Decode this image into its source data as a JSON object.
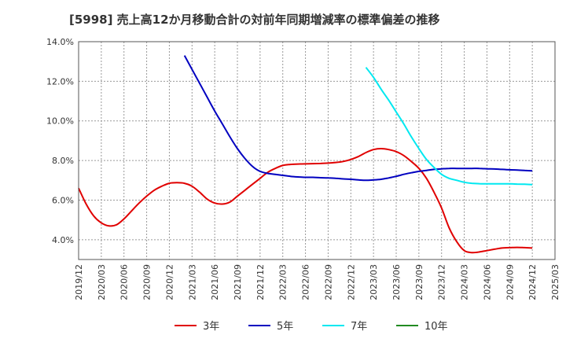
{
  "chart_data": {
    "type": "line",
    "title": "[5998]  売上高12か月移動合計の対前年同期増減率の標準偏差の推移",
    "xlabel": "",
    "ylabel": "",
    "ylim": [
      3.0,
      14.0
    ],
    "y_ticks": [
      4.0,
      6.0,
      8.0,
      10.0,
      12.0,
      14.0
    ],
    "y_tick_labels": [
      "4.0%",
      "6.0%",
      "8.0%",
      "10.0%",
      "12.0%",
      "14.0%"
    ],
    "x_categories": [
      "2019/12",
      "2020/03",
      "2020/06",
      "2020/09",
      "2020/12",
      "2021/03",
      "2021/06",
      "2021/09",
      "2021/12",
      "2022/03",
      "2022/06",
      "2022/09",
      "2022/12",
      "2023/03",
      "2023/06",
      "2023/09",
      "2023/12",
      "2024/03",
      "2024/06",
      "2024/09",
      "2024/12",
      "2025/03"
    ],
    "grid": true,
    "legend_position": "bottom",
    "series": [
      {
        "name": "3年",
        "color": "#e00000",
        "points": [
          [
            "2019/12",
            6.6
          ],
          [
            "2020/01",
            5.8
          ],
          [
            "2020/02",
            5.2
          ],
          [
            "2020/03",
            4.85
          ],
          [
            "2020/04",
            4.7
          ],
          [
            "2020/05",
            4.75
          ],
          [
            "2020/06",
            5.05
          ],
          [
            "2020/07",
            5.45
          ],
          [
            "2020/08",
            5.85
          ],
          [
            "2020/09",
            6.2
          ],
          [
            "2020/10",
            6.5
          ],
          [
            "2020/11",
            6.7
          ],
          [
            "2020/12",
            6.85
          ],
          [
            "2021/01",
            6.88
          ],
          [
            "2021/02",
            6.85
          ],
          [
            "2021/03",
            6.7
          ],
          [
            "2021/04",
            6.4
          ],
          [
            "2021/05",
            6.05
          ],
          [
            "2021/06",
            5.85
          ],
          [
            "2021/07",
            5.8
          ],
          [
            "2021/08",
            5.9
          ],
          [
            "2021/09",
            6.2
          ],
          [
            "2021/10",
            6.5
          ],
          [
            "2021/11",
            6.8
          ],
          [
            "2021/12",
            7.1
          ],
          [
            "2022/01",
            7.4
          ],
          [
            "2022/02",
            7.6
          ],
          [
            "2022/03",
            7.75
          ],
          [
            "2022/04",
            7.8
          ],
          [
            "2022/05",
            7.82
          ],
          [
            "2022/06",
            7.83
          ],
          [
            "2022/07",
            7.84
          ],
          [
            "2022/08",
            7.85
          ],
          [
            "2022/09",
            7.87
          ],
          [
            "2022/10",
            7.9
          ],
          [
            "2022/11",
            7.95
          ],
          [
            "2022/12",
            8.05
          ],
          [
            "2023/01",
            8.2
          ],
          [
            "2023/02",
            8.4
          ],
          [
            "2023/03",
            8.55
          ],
          [
            "2023/04",
            8.6
          ],
          [
            "2023/05",
            8.55
          ],
          [
            "2023/06",
            8.45
          ],
          [
            "2023/07",
            8.25
          ],
          [
            "2023/08",
            7.95
          ],
          [
            "2023/09",
            7.6
          ],
          [
            "2023/10",
            7.1
          ],
          [
            "2023/11",
            6.4
          ],
          [
            "2023/12",
            5.6
          ],
          [
            "2024/01",
            4.6
          ],
          [
            "2024/02",
            3.9
          ],
          [
            "2024/03",
            3.45
          ],
          [
            "2024/04",
            3.35
          ],
          [
            "2024/05",
            3.38
          ],
          [
            "2024/06",
            3.45
          ],
          [
            "2024/07",
            3.52
          ],
          [
            "2024/08",
            3.58
          ],
          [
            "2024/09",
            3.6
          ],
          [
            "2024/10",
            3.61
          ],
          [
            "2024/11",
            3.6
          ],
          [
            "2024/12",
            3.58
          ]
        ]
      },
      {
        "name": "5年",
        "color": "#0000c0",
        "points": [
          [
            "2021/02",
            13.3
          ],
          [
            "2021/03",
            12.6
          ],
          [
            "2021/04",
            11.9
          ],
          [
            "2021/05",
            11.2
          ],
          [
            "2021/06",
            10.5
          ],
          [
            "2021/07",
            9.85
          ],
          [
            "2021/08",
            9.2
          ],
          [
            "2021/09",
            8.6
          ],
          [
            "2021/10",
            8.1
          ],
          [
            "2021/11",
            7.7
          ],
          [
            "2021/12",
            7.45
          ],
          [
            "2022/01",
            7.35
          ],
          [
            "2022/02",
            7.3
          ],
          [
            "2022/03",
            7.25
          ],
          [
            "2022/04",
            7.2
          ],
          [
            "2022/05",
            7.17
          ],
          [
            "2022/06",
            7.15
          ],
          [
            "2022/07",
            7.15
          ],
          [
            "2022/08",
            7.13
          ],
          [
            "2022/09",
            7.12
          ],
          [
            "2022/10",
            7.1
          ],
          [
            "2022/11",
            7.07
          ],
          [
            "2022/12",
            7.05
          ],
          [
            "2023/01",
            7.02
          ],
          [
            "2023/02",
            7.0
          ],
          [
            "2023/03",
            7.02
          ],
          [
            "2023/04",
            7.05
          ],
          [
            "2023/05",
            7.12
          ],
          [
            "2023/06",
            7.2
          ],
          [
            "2023/07",
            7.3
          ],
          [
            "2023/08",
            7.38
          ],
          [
            "2023/09",
            7.45
          ],
          [
            "2023/10",
            7.5
          ],
          [
            "2023/11",
            7.55
          ],
          [
            "2023/12",
            7.58
          ],
          [
            "2024/01",
            7.6
          ],
          [
            "2024/02",
            7.6
          ],
          [
            "2024/03",
            7.6
          ],
          [
            "2024/04",
            7.6
          ],
          [
            "2024/05",
            7.6
          ],
          [
            "2024/06",
            7.58
          ],
          [
            "2024/07",
            7.57
          ],
          [
            "2024/08",
            7.55
          ],
          [
            "2024/09",
            7.53
          ],
          [
            "2024/10",
            7.52
          ],
          [
            "2024/11",
            7.5
          ],
          [
            "2024/12",
            7.48
          ]
        ]
      },
      {
        "name": "7年",
        "color": "#00e8f0",
        "points": [
          [
            "2023/02",
            12.7
          ],
          [
            "2023/03",
            12.2
          ],
          [
            "2023/04",
            11.6
          ],
          [
            "2023/05",
            11.05
          ],
          [
            "2023/06",
            10.45
          ],
          [
            "2023/07",
            9.85
          ],
          [
            "2023/08",
            9.2
          ],
          [
            "2023/09",
            8.6
          ],
          [
            "2023/10",
            8.05
          ],
          [
            "2023/11",
            7.65
          ],
          [
            "2023/12",
            7.3
          ],
          [
            "2024/01",
            7.1
          ],
          [
            "2024/02",
            7.0
          ],
          [
            "2024/03",
            6.9
          ],
          [
            "2024/04",
            6.85
          ],
          [
            "2024/05",
            6.83
          ],
          [
            "2024/06",
            6.82
          ],
          [
            "2024/07",
            6.82
          ],
          [
            "2024/08",
            6.82
          ],
          [
            "2024/09",
            6.82
          ],
          [
            "2024/10",
            6.81
          ],
          [
            "2024/11",
            6.8
          ],
          [
            "2024/12",
            6.78
          ]
        ]
      },
      {
        "name": "10年",
        "color": "#228B22",
        "points": []
      }
    ]
  }
}
